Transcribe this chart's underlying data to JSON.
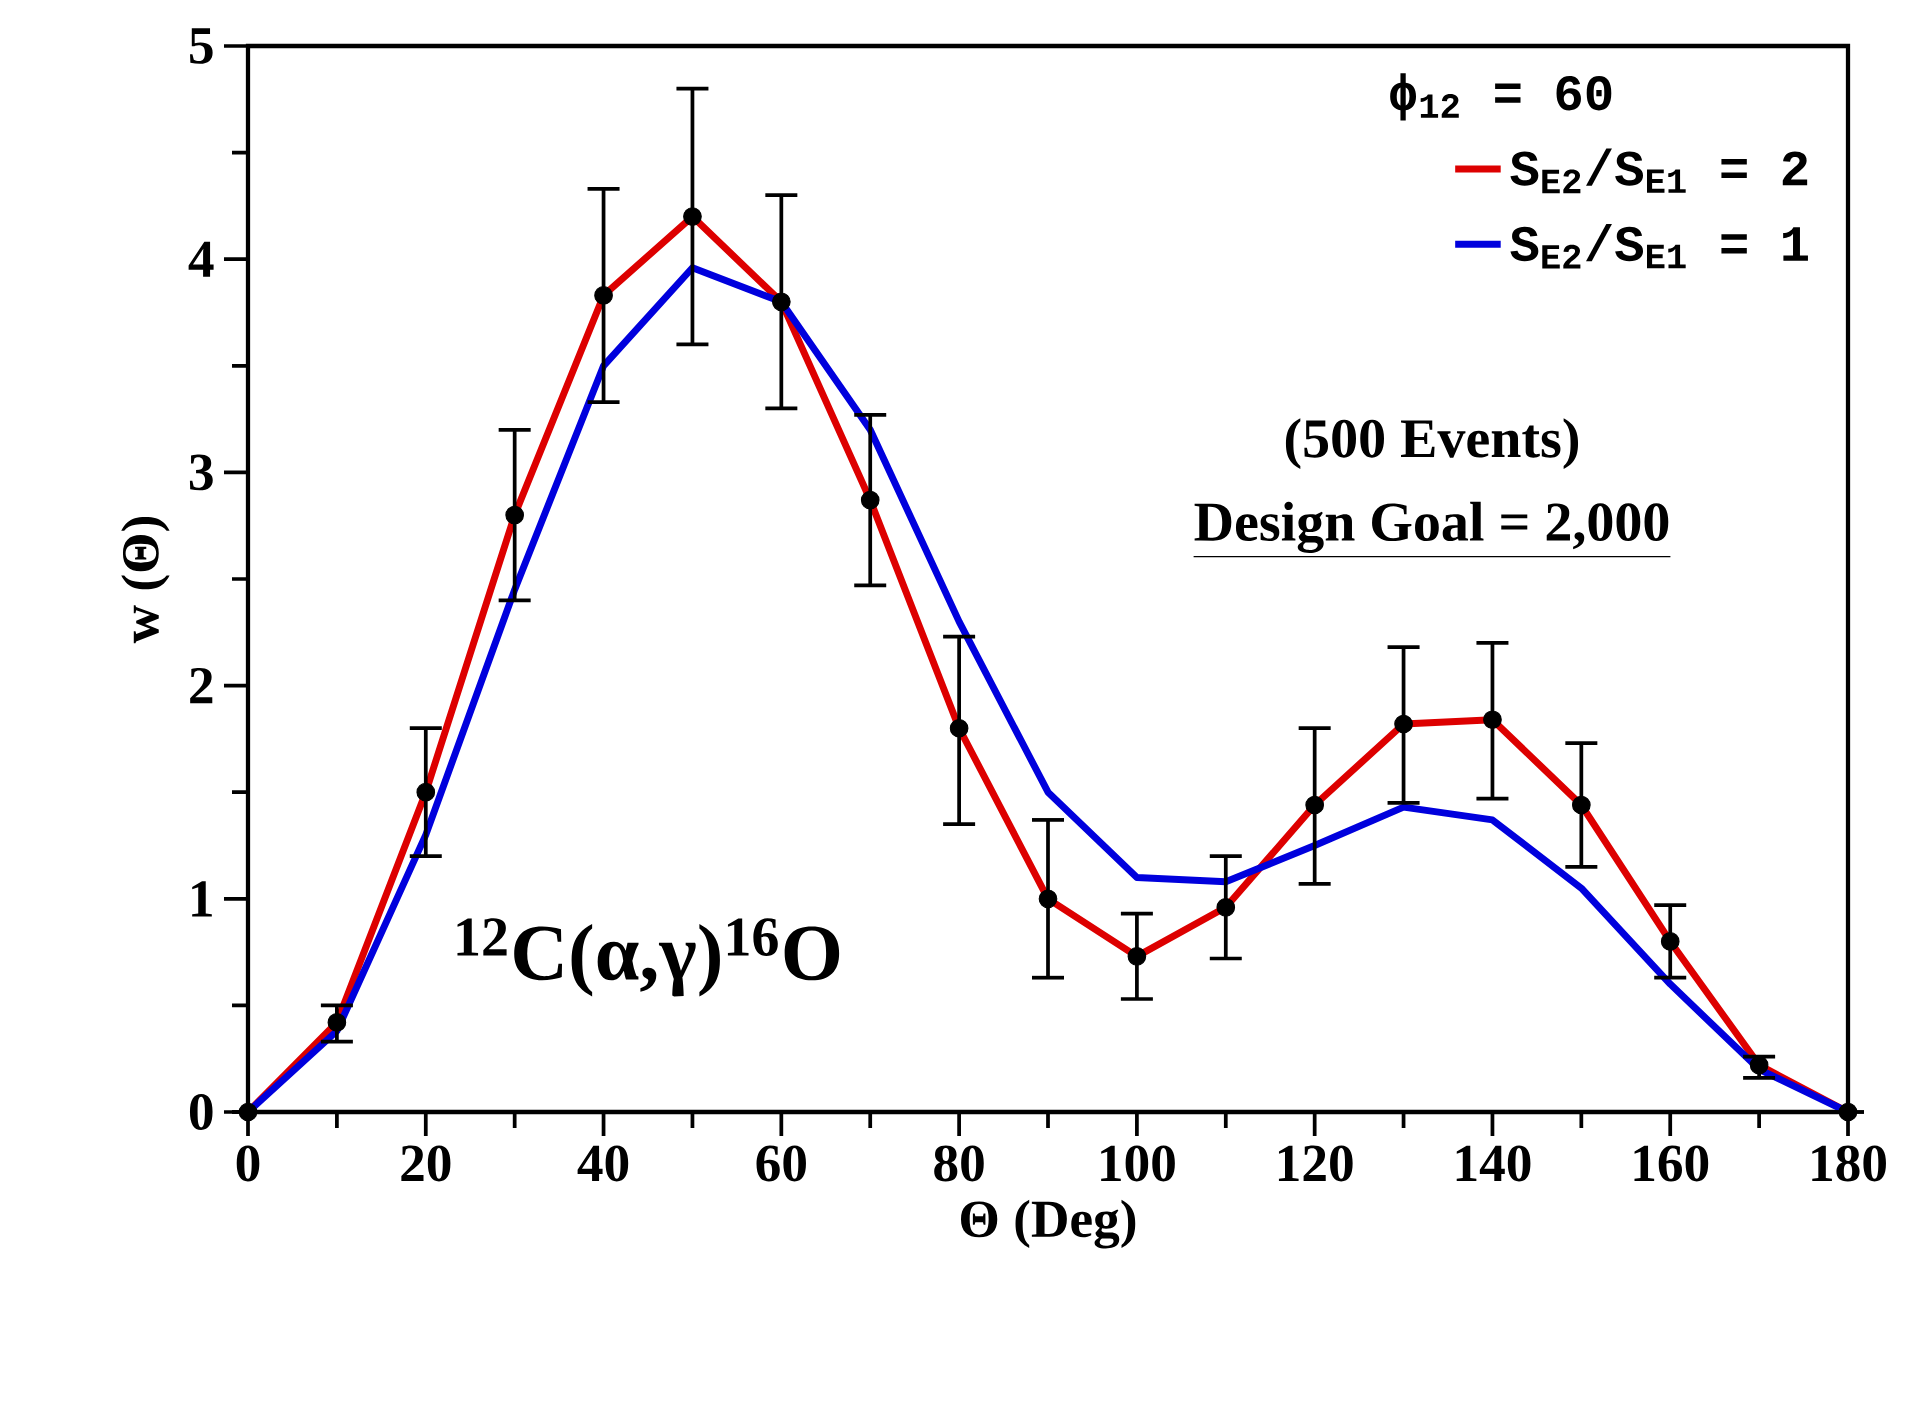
{
  "chart_data": {
    "type": "line",
    "xlabel": "Θ (Deg)",
    "ylabel": "w (Θ)",
    "legend_title": "ϕ$_{12}$ = 60",
    "x": [
      0,
      10,
      20,
      30,
      40,
      50,
      60,
      70,
      80,
      90,
      100,
      110,
      120,
      130,
      140,
      150,
      160,
      170,
      180
    ],
    "series": [
      {
        "name": "S$_{E2}$/S$_{E1}$ = 2",
        "color": "#dd0000",
        "values": [
          0,
          0.42,
          1.5,
          2.8,
          3.83,
          4.2,
          3.8,
          2.87,
          1.8,
          1.0,
          0.73,
          0.96,
          1.44,
          1.82,
          1.84,
          1.44,
          0.8,
          0.22,
          0
        ],
        "marker": "none"
      },
      {
        "name": "S$_{E2}$/S$_{E1}$ = 1",
        "color": "#0000dd",
        "values": [
          0,
          0.38,
          1.3,
          2.45,
          3.5,
          3.96,
          3.8,
          3.2,
          2.3,
          1.5,
          1.1,
          1.08,
          1.25,
          1.43,
          1.37,
          1.05,
          0.6,
          0.2,
          0
        ],
        "marker": "none"
      },
      {
        "type": "scatter",
        "color": "#000000",
        "marker": "circle",
        "values": [
          0,
          0.42,
          1.5,
          2.8,
          3.83,
          4.2,
          3.8,
          2.87,
          1.8,
          1.0,
          0.73,
          0.96,
          1.44,
          1.82,
          1.84,
          1.44,
          0.8,
          0.22,
          0
        ],
        "errors": [
          null,
          [
            0.33,
            0.5
          ],
          [
            1.2,
            1.8
          ],
          [
            2.4,
            3.2
          ],
          [
            3.33,
            4.33
          ],
          [
            3.6,
            4.8
          ],
          [
            3.3,
            4.3
          ],
          [
            2.47,
            3.27
          ],
          [
            1.35,
            2.23
          ],
          [
            0.63,
            1.37
          ],
          [
            0.53,
            0.93
          ],
          [
            0.72,
            1.2
          ],
          [
            1.07,
            1.8
          ],
          [
            1.45,
            2.18
          ],
          [
            1.47,
            2.2
          ],
          [
            1.15,
            1.73
          ],
          [
            0.63,
            0.97
          ],
          [
            0.16,
            0.26
          ],
          null
        ]
      }
    ],
    "xlim": [
      0,
      180
    ],
    "ylim": [
      0,
      5
    ],
    "xticks": [
      0,
      20,
      40,
      60,
      80,
      100,
      120,
      140,
      160,
      180
    ],
    "yticks": [
      0,
      1,
      2,
      3,
      4,
      5
    ],
    "grid": false,
    "legend": "top right",
    "annotations": [
      "(500 Events)",
      "Design Goal = 2,000",
      "$^{12}$C(α,γ)$^{16}$O"
    ]
  }
}
